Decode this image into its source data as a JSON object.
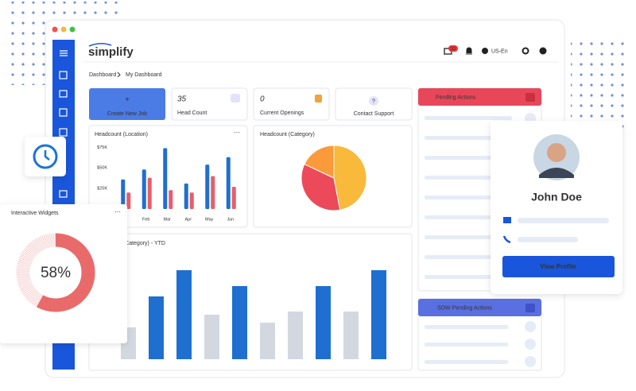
{
  "window": {
    "logo": "simplify",
    "notification_count": "33",
    "locale": "US-En"
  },
  "breadcrumb": {
    "root": "Dashboard",
    "current": "My Dashboard"
  },
  "cards": [
    {
      "icon": "+",
      "label": "Create New Job"
    },
    {
      "value": 35,
      "label": "Head Count"
    },
    {
      "value": 0,
      "label": "Current Openings"
    },
    {
      "icon": "?",
      "label": "Contact Support"
    }
  ],
  "panels": {
    "pending": "Pending Actions",
    "sow_pending": "SOW Pending Actions"
  },
  "profile": {
    "name": "John Doe",
    "button": "View Profile"
  },
  "chart_data": [
    {
      "type": "bar",
      "title": "Headcount (Location)",
      "categories": [
        null,
        "Feb",
        "Mar",
        "Apr",
        "May",
        "Jun"
      ],
      "series": [
        {
          "color": "#1f6fd1",
          "values": [
            36,
            48,
            74,
            31,
            54,
            63
          ]
        },
        {
          "color": "#e85d6a",
          "values": [
            20,
            38,
            23,
            20,
            40,
            27
          ]
        }
      ],
      "ylim": [
        0,
        85
      ],
      "yticks": [
        {
          "value": 25,
          "label": "$25K"
        },
        {
          "value": 50,
          "label": "$50K"
        },
        {
          "value": 75,
          "label": "$75K"
        }
      ]
    },
    {
      "type": "pie",
      "title": "Headcount (Category)",
      "values": [
        47,
        35,
        18
      ],
      "colors": [
        "#f9b93a",
        "#ec4a5a",
        "#fb9a3a"
      ]
    },
    {
      "type": "bar",
      "title": "Headcount (Category) - YTD",
      "values": [
        40,
        79,
        112,
        56,
        92,
        46,
        60,
        92,
        60,
        112
      ],
      "colors": [
        "#d3d8e0",
        "#1f6fd1",
        "#1f6fd1",
        "#d3d8e0",
        "#1f6fd1",
        "#d3d8e0",
        "#d3d8e0",
        "#1f6fd1",
        "#d3d8e0",
        "#1f6fd1"
      ],
      "ylim": [
        0,
        120
      ]
    },
    {
      "type": "donut",
      "title": "Interactive Widgets",
      "values": [
        58
      ],
      "value_labels": [
        "58%"
      ],
      "color": "#e96a6a"
    }
  ]
}
